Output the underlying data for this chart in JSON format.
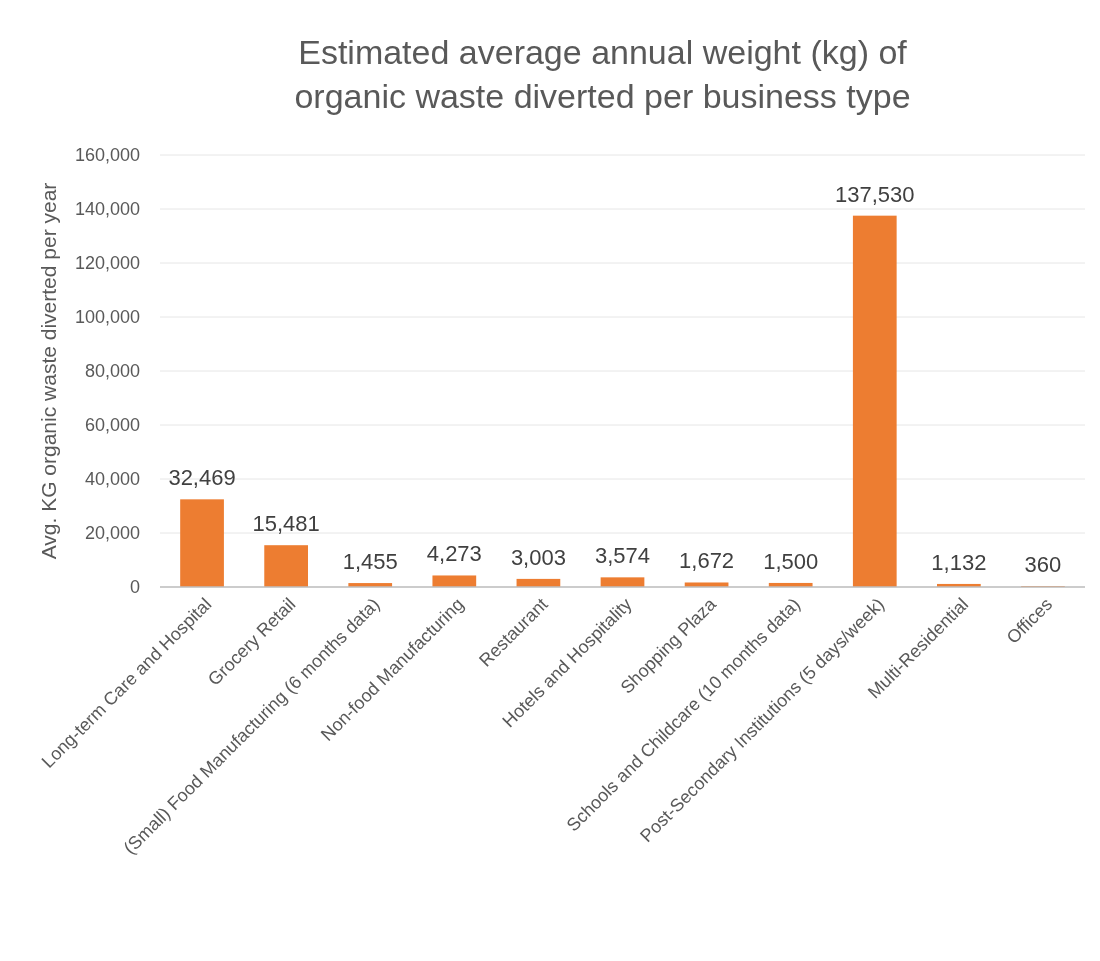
{
  "chart_data": {
    "type": "bar",
    "title": "Estimated average annual weight (kg) of organic waste diverted per business type",
    "ylabel": "Avg. KG organic waste diverted per year",
    "categories": [
      "Long-term Care and Hospital",
      "Grocery Retail",
      "(Small) Food Manufacturing (6 months data)",
      "Non-food Manufacturing",
      "Restaurant",
      "Hotels and Hospitality",
      "Shopping Plaza",
      "Schools and Childcare (10 months data)",
      "Post-Secondary Institutions (5 days/week)",
      "Multi-Residential",
      "Offices"
    ],
    "values": [
      32469,
      15481,
      1455,
      4273,
      3003,
      3574,
      1672,
      1500,
      137530,
      1132,
      360
    ],
    "value_labels": [
      "32,469",
      "15,481",
      "1,455",
      "4,273",
      "3,003",
      "3,574",
      "1,672",
      "1,500",
      "137,530",
      "1,132",
      "360"
    ],
    "color": "#ed7d31",
    "ylim": [
      0,
      160000
    ],
    "yticks": [
      0,
      {
        "value": 20000,
        "label": "20,000"
      },
      {
        "value": 40000,
        "label": "40,000"
      },
      {
        "value": 60000,
        "label": "60,000"
      },
      {
        "value": 80000,
        "label": "80,000"
      },
      {
        "value": 100000,
        "label": "100,000"
      },
      {
        "value": 120000,
        "label": "120,000"
      },
      {
        "value": 140000,
        "label": "140,000"
      },
      {
        "value": 160000,
        "label": "160,000"
      }
    ],
    "grid": "y"
  }
}
